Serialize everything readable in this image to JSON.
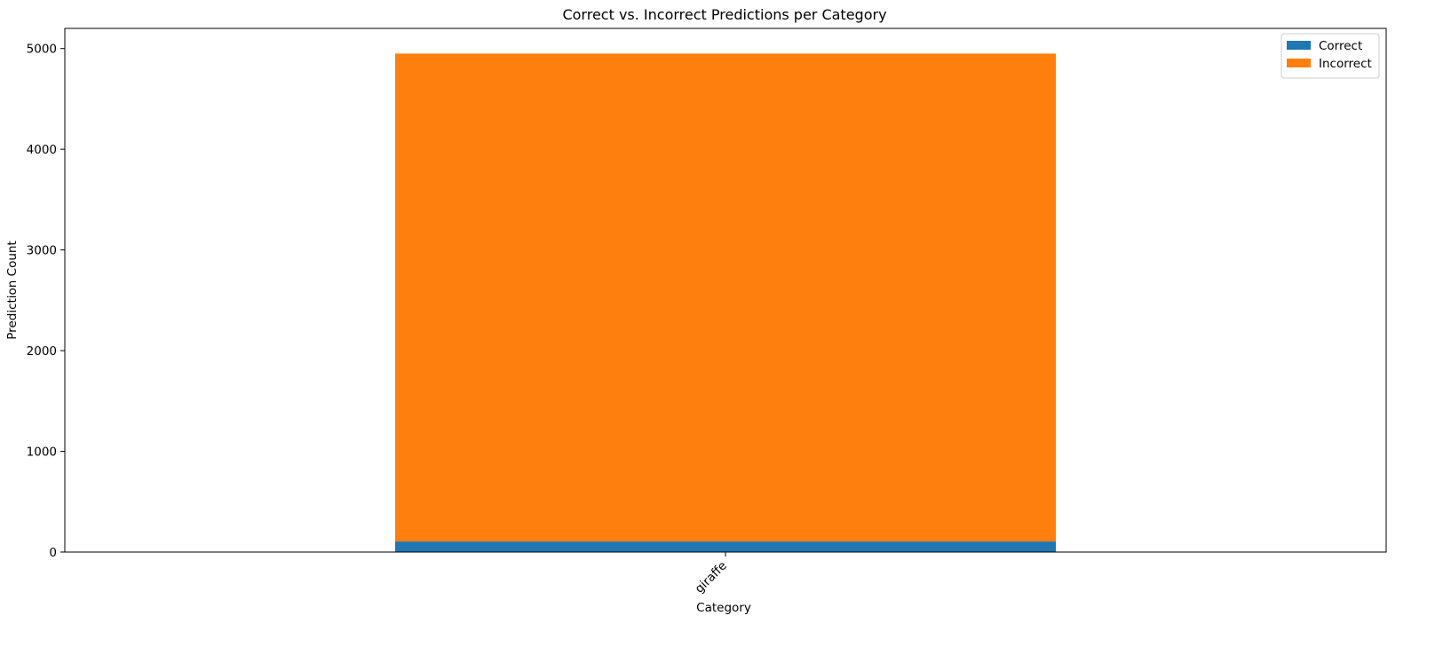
{
  "chart_data": {
    "type": "bar",
    "stacked": true,
    "title": "Correct vs. Incorrect Predictions per Category",
    "xlabel": "Category",
    "ylabel": "Prediction Count",
    "categories": [
      "giraffe"
    ],
    "series": [
      {
        "name": "Correct",
        "values": [
          105
        ],
        "color": "#1f77b4"
      },
      {
        "name": "Incorrect",
        "values": [
          4845
        ],
        "color": "#ff7f0e"
      }
    ],
    "ylim": [
      0,
      5200
    ],
    "yticks": [
      0,
      1000,
      2000,
      3000,
      4000,
      5000
    ],
    "grid": false,
    "legend_position": "top-right"
  }
}
